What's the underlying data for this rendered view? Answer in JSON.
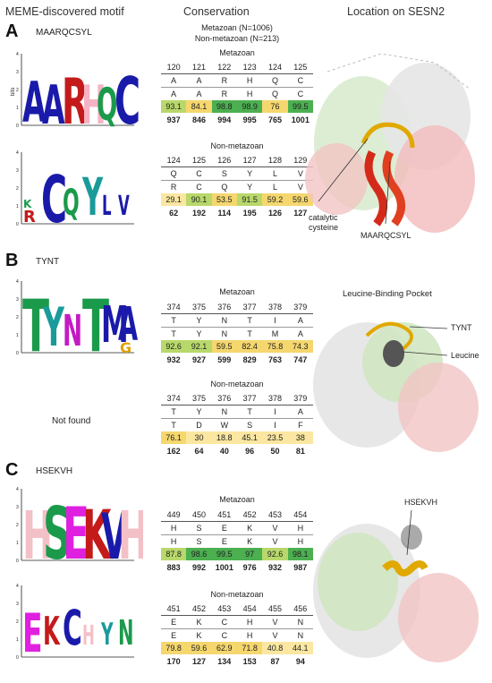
{
  "headers": {
    "col1": "MEME-discovered motif",
    "col2": "Conservation",
    "col3": "Location on SESN2"
  },
  "top_note": {
    "line1": "Metazoan (N=1006)",
    "line2": "Non-metazoan (N=213)"
  },
  "panels": [
    {
      "letter": "A",
      "motif": "MAARQCSYL",
      "logo_axis_label": "bits",
      "logo1_letters": [
        "A",
        "A",
        "R",
        "H",
        "Q",
        "C"
      ],
      "logo2_letters": [
        "C",
        "Q",
        "Y",
        "L",
        "V"
      ],
      "metazoan": {
        "label": "Metazoan",
        "positions": [
          "120",
          "121",
          "122",
          "123",
          "124",
          "125"
        ],
        "ref": [
          "A",
          "A",
          "R",
          "H",
          "Q",
          "C"
        ],
        "target": [
          "A",
          "A",
          "R",
          "H",
          "Q",
          "C"
        ],
        "percent": [
          "93.1",
          "84.1",
          "98.8",
          "98.9",
          "76",
          "99.5"
        ],
        "percent_values": [
          93.1,
          84.1,
          98.8,
          98.9,
          76,
          99.5
        ],
        "counts": [
          "937",
          "846",
          "994",
          "995",
          "765",
          "1001"
        ]
      },
      "nonmetazoan": {
        "label": "Non-metazoan",
        "positions": [
          "124",
          "125",
          "126",
          "127",
          "128",
          "129"
        ],
        "ref": [
          "Q",
          "C",
          "S",
          "Y",
          "L",
          "V"
        ],
        "target": [
          "R",
          "C",
          "Q",
          "Y",
          "L",
          "V"
        ],
        "percent": [
          "29.1",
          "90.1",
          "53.5",
          "91.5",
          "59.2",
          "59.6"
        ],
        "percent_values": [
          29.1,
          90.1,
          53.5,
          91.5,
          59.2,
          59.6
        ],
        "counts": [
          "62",
          "192",
          "114",
          "195",
          "126",
          "127"
        ]
      },
      "annotations": [
        "catalytic cysteine",
        "MAARQCSYL"
      ]
    },
    {
      "letter": "B",
      "motif": "TYNT",
      "logo_axis_label": "bits",
      "logo1_letters": [
        "T",
        "Y",
        "N",
        "T",
        "M",
        "A"
      ],
      "not_found": "Not found",
      "metazoan": {
        "label": "Metazoan",
        "positions": [
          "374",
          "375",
          "376",
          "377",
          "378",
          "379"
        ],
        "ref": [
          "T",
          "Y",
          "N",
          "T",
          "I",
          "A"
        ],
        "target": [
          "T",
          "Y",
          "N",
          "T",
          "M",
          "A"
        ],
        "percent": [
          "92.6",
          "92.1",
          "59.5",
          "82.4",
          "75.8",
          "74.3"
        ],
        "percent_values": [
          92.6,
          92.1,
          59.5,
          82.4,
          75.8,
          74.3
        ],
        "counts": [
          "932",
          "927",
          "599",
          "829",
          "763",
          "747"
        ]
      },
      "nonmetazoan": {
        "label": "Non-metazoan",
        "positions": [
          "374",
          "375",
          "376",
          "377",
          "378",
          "379"
        ],
        "ref": [
          "T",
          "Y",
          "N",
          "T",
          "I",
          "A"
        ],
        "target": [
          "T",
          "D",
          "W",
          "S",
          "I",
          "F"
        ],
        "percent": [
          "76.1",
          "30",
          "18.8",
          "45.1",
          "23.5",
          "38"
        ],
        "percent_values": [
          76.1,
          30,
          18.8,
          45.1,
          23.5,
          38
        ],
        "counts": [
          "162",
          "64",
          "40",
          "96",
          "50",
          "81"
        ]
      },
      "structure_title": "Leucine-Binding Pocket",
      "annotations": [
        "TYNT",
        "Leucine"
      ]
    },
    {
      "letter": "C",
      "motif": "HSEKVH",
      "logo_axis_label": "bits",
      "logo1_letters": [
        "H",
        "S",
        "E",
        "K",
        "V",
        "H"
      ],
      "logo2_letters": [
        "E",
        "K",
        "C",
        "H",
        "Y",
        "N"
      ],
      "metazoan": {
        "label": "Metazoan",
        "positions": [
          "449",
          "450",
          "451",
          "452",
          "453",
          "454"
        ],
        "ref": [
          "H",
          "S",
          "E",
          "K",
          "V",
          "H"
        ],
        "target": [
          "H",
          "S",
          "E",
          "K",
          "V",
          "H"
        ],
        "percent": [
          "87.8",
          "98.6",
          "99.5",
          "97",
          "92.6",
          "98.1"
        ],
        "percent_values": [
          87.8,
          98.6,
          99.5,
          97,
          92.6,
          98.1
        ],
        "counts": [
          "883",
          "992",
          "1001",
          "976",
          "932",
          "987"
        ]
      },
      "nonmetazoan": {
        "label": "Non-metazoan",
        "positions": [
          "451",
          "452",
          "453",
          "454",
          "455",
          "456"
        ],
        "ref": [
          "E",
          "K",
          "C",
          "H",
          "V",
          "N"
        ],
        "target": [
          "E",
          "K",
          "C",
          "H",
          "V",
          "N"
        ],
        "percent": [
          "79.8",
          "59.6",
          "62.9",
          "71.8",
          "40.8",
          "44.1"
        ],
        "percent_values": [
          79.8,
          59.6,
          62.9,
          71.8,
          40.8,
          44.1
        ],
        "counts": [
          "170",
          "127",
          "134",
          "153",
          "87",
          "94"
        ]
      },
      "annotations": [
        "HSEKVH"
      ]
    }
  ],
  "colors": {
    "high": "#4caf50",
    "mid": "#b8d86b",
    "low": "#f5d76e",
    "lowest": "#fbe7a1"
  }
}
